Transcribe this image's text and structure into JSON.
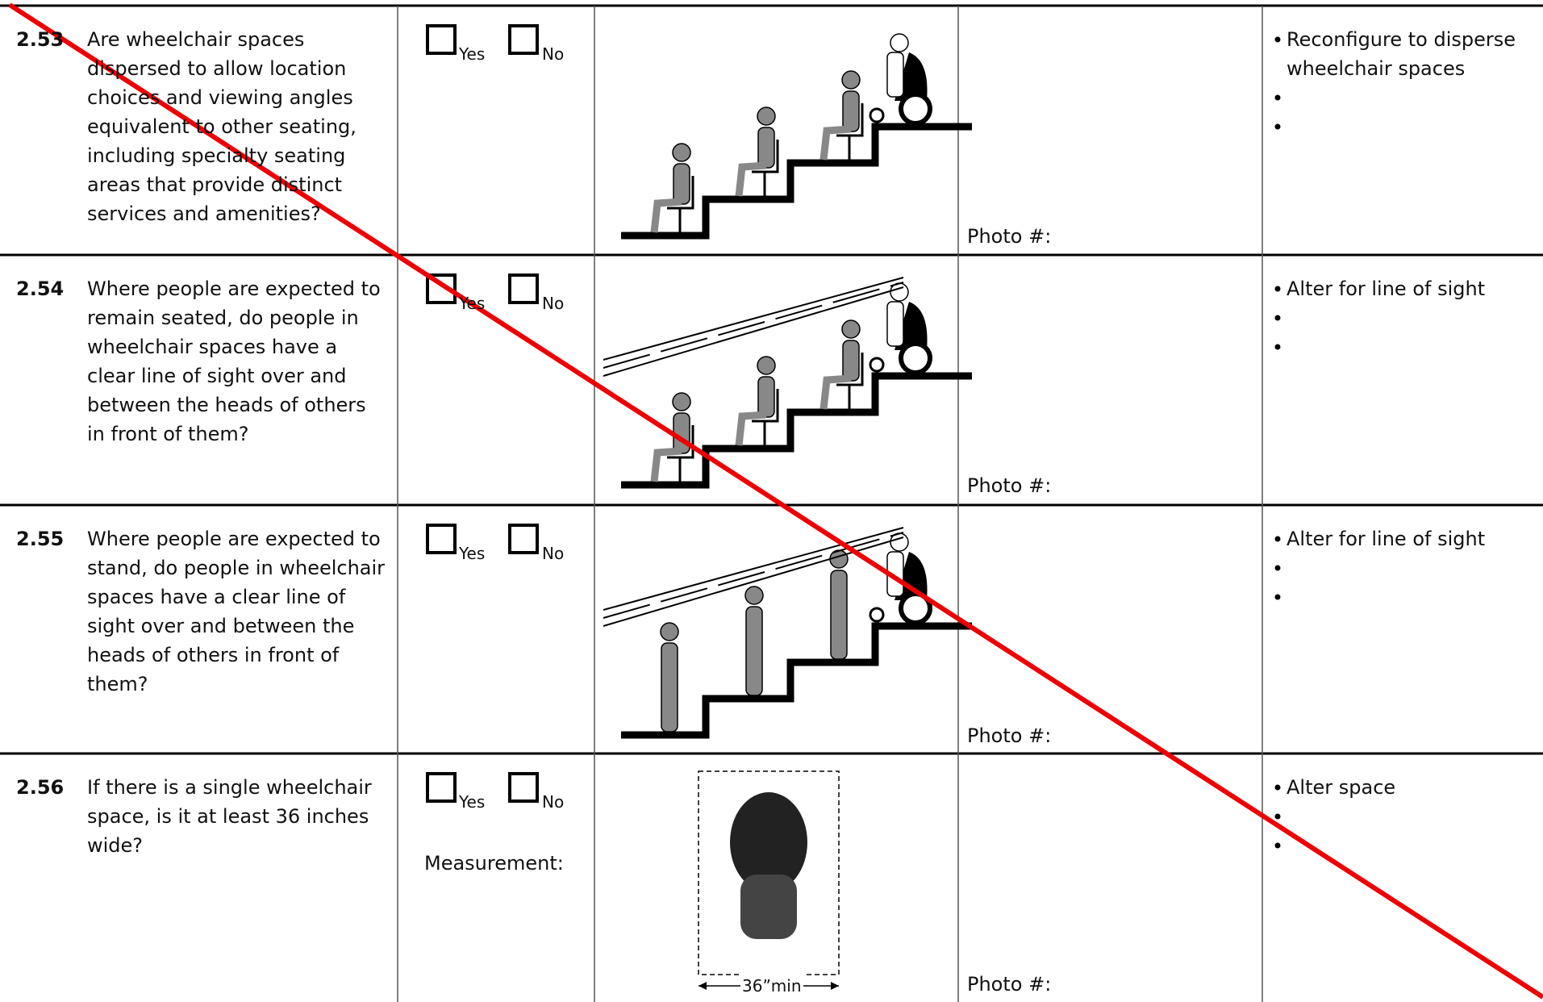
{
  "rows": [
    {
      "number": "2.53",
      "question": "Are wheelchair spaces dispersed to allow location choices and viewing angles equivalent to other seating, including specialty seating areas that provide distinct services and amenities?",
      "yes": "Yes",
      "no": "No",
      "photo": "Photo #:",
      "recommendations": [
        "Reconfigure to disperse wheelchair spaces"
      ]
    },
    {
      "number": "2.54",
      "question": "Where people are expected to remain seated, do people in wheelchair spaces have a clear line of sight over and between the heads of others in front of them?",
      "yes": "Yes",
      "no": "No",
      "photo": "Photo #:",
      "recommendations": [
        "Alter for line of sight"
      ]
    },
    {
      "number": "2.55",
      "question": "Where people are expected to stand, do people in wheelchair spaces have a clear line of sight over and between the heads of others in front of them?",
      "yes": "Yes",
      "no": "No",
      "photo": "Photo #:",
      "recommendations": [
        "Alter for line of sight"
      ]
    },
    {
      "number": "2.56",
      "question": "If there is a single wheelchair space, is it at least 36 inches wide?",
      "yes": "Yes",
      "no": "No",
      "measurement": "Measurement:",
      "dimension_label": "36”min",
      "photo": "Photo #:",
      "recommendations": [
        "Alter space"
      ]
    }
  ]
}
